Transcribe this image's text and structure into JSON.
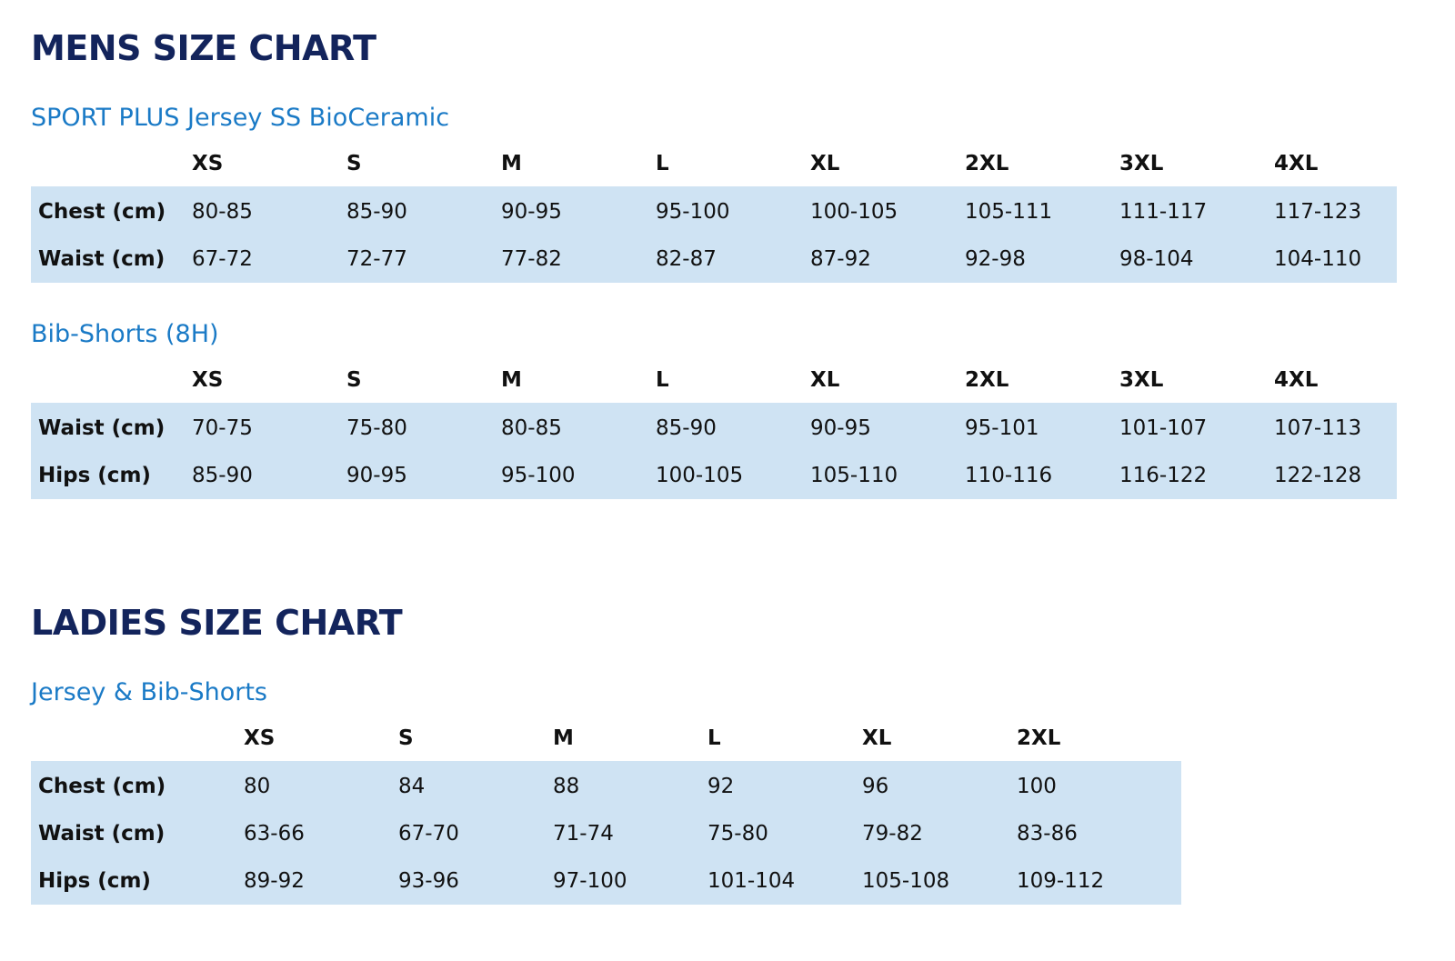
{
  "mens": {
    "title": "MENS SIZE CHART",
    "tables": [
      {
        "title": "SPORT PLUS Jersey SS BioCeramic",
        "sizes": [
          "XS",
          "S",
          "M",
          "L",
          "XL",
          "2XL",
          "3XL",
          "4XL"
        ],
        "rows": [
          {
            "label": "Chest (cm)",
            "values": [
              "80-85",
              "85-90",
              "90-95",
              "95-100",
              "100-105",
              "105-111",
              "111-117",
              "117-123"
            ]
          },
          {
            "label": "Waist (cm)",
            "values": [
              "67-72",
              "72-77",
              "77-82",
              "82-87",
              "87-92",
              "92-98",
              "98-104",
              "104-110"
            ]
          }
        ]
      },
      {
        "title": "Bib-Shorts (8H)",
        "sizes": [
          "XS",
          "S",
          "M",
          "L",
          "XL",
          "2XL",
          "3XL",
          "4XL"
        ],
        "rows": [
          {
            "label": "Waist (cm)",
            "values": [
              "70-75",
              "75-80",
              "80-85",
              "85-90",
              "90-95",
              "95-101",
              "101-107",
              "107-113"
            ]
          },
          {
            "label": "Hips (cm)",
            "values": [
              "85-90",
              "90-95",
              "95-100",
              "100-105",
              "105-110",
              "110-116",
              "116-122",
              "122-128"
            ]
          }
        ]
      }
    ]
  },
  "ladies": {
    "title": "LADIES SIZE CHART",
    "tables": [
      {
        "title": "Jersey & Bib-Shorts",
        "sizes": [
          "XS",
          "S",
          "M",
          "L",
          "XL",
          "2XL"
        ],
        "rows": [
          {
            "label": "Chest (cm)",
            "values": [
              "80",
              "84",
              "88",
              "92",
              "96",
              "100"
            ]
          },
          {
            "label": "Waist (cm)",
            "values": [
              "63-66",
              "67-70",
              "71-74",
              "75-80",
              "79-82",
              "83-86"
            ]
          },
          {
            "label": "Hips (cm)",
            "values": [
              "89-92",
              "93-96",
              "97-100",
              "101-104",
              "105-108",
              "109-112"
            ]
          }
        ]
      }
    ]
  },
  "colors": {
    "section_title": "#13245c",
    "table_title": "#1a7ac6",
    "row_background": "#cfe3f3"
  }
}
